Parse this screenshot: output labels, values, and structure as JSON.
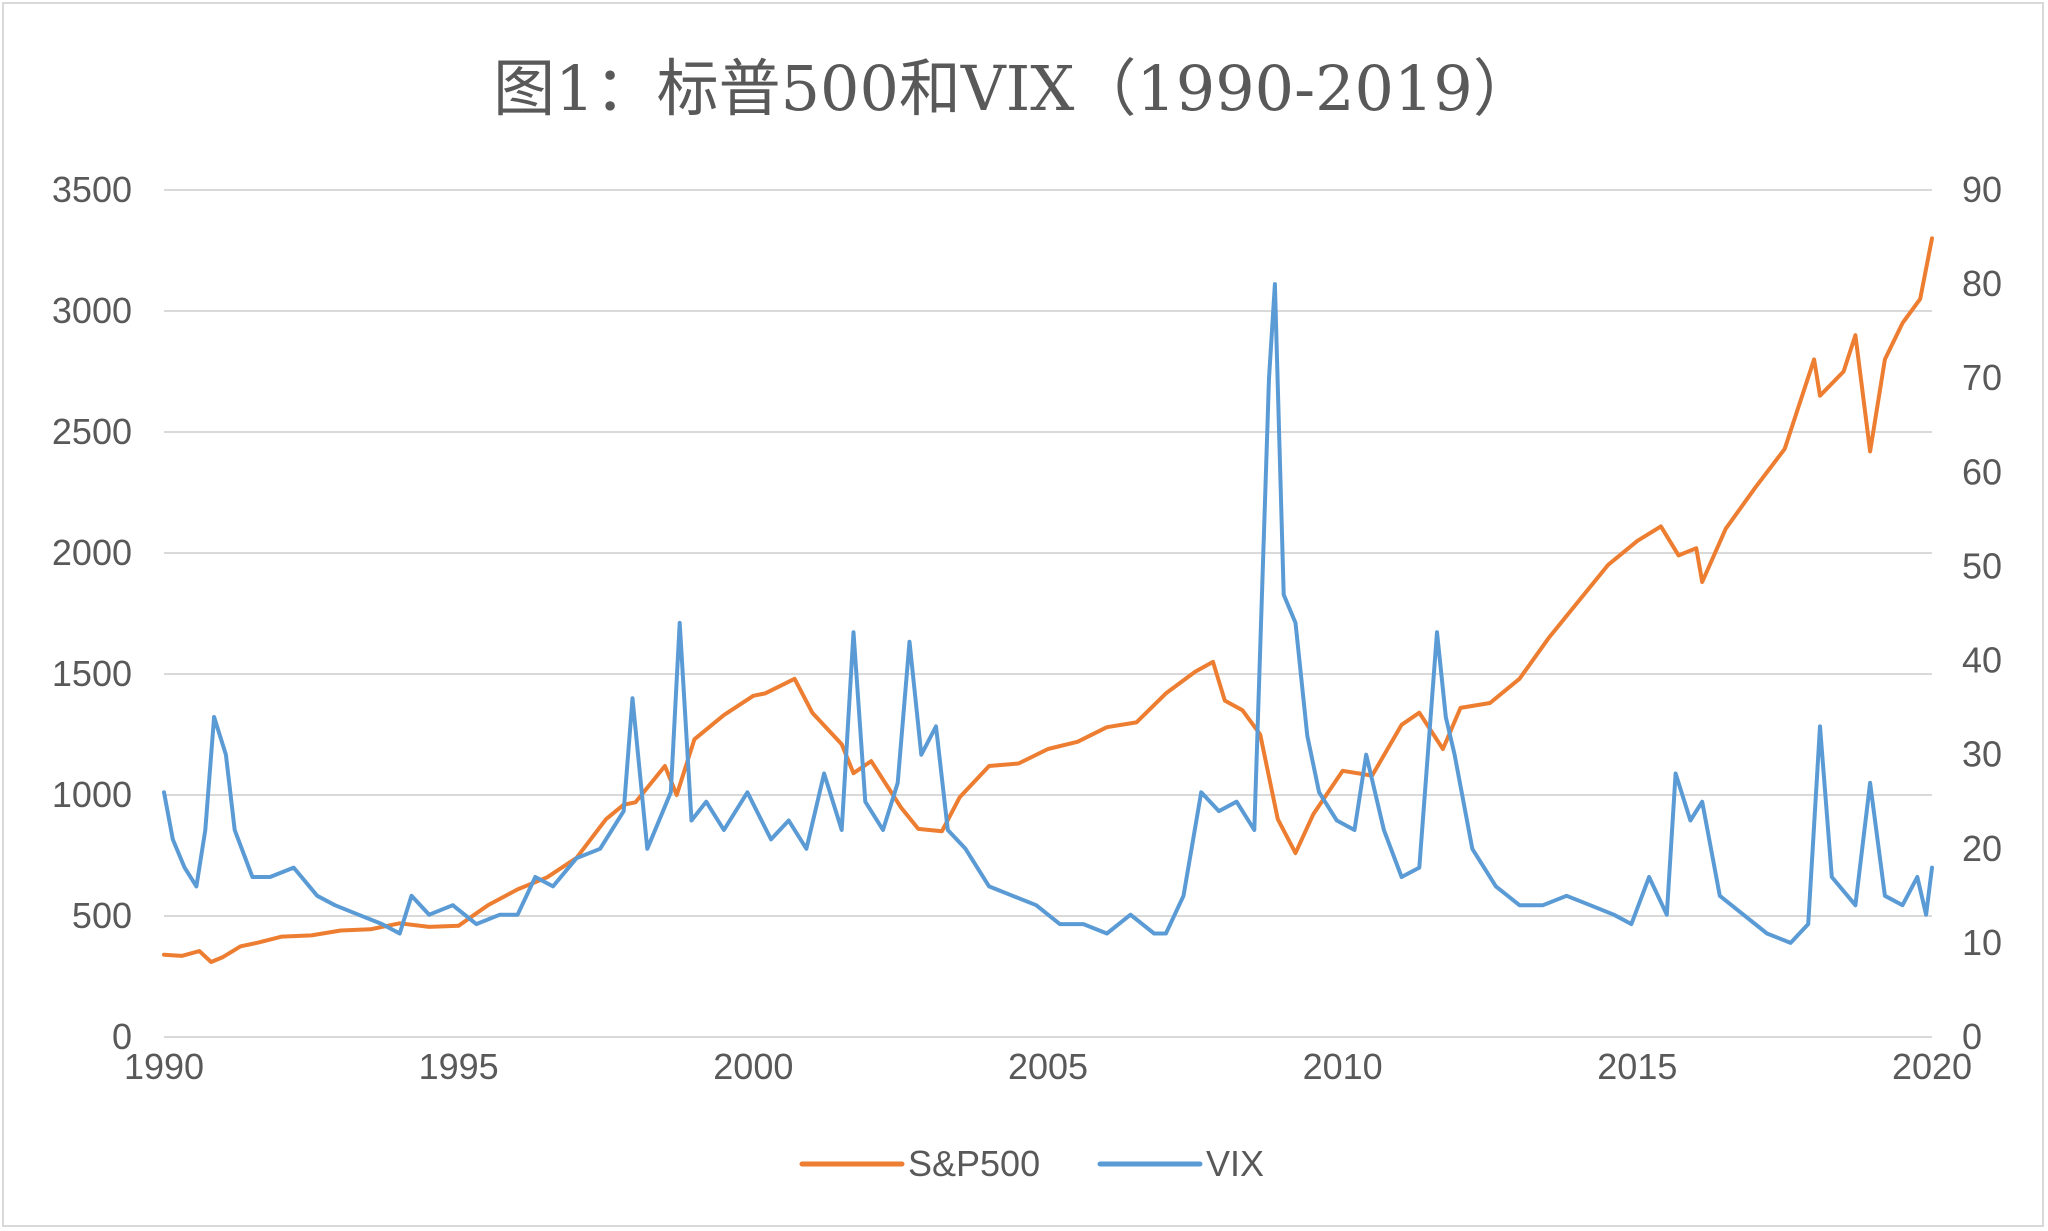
{
  "chart_data": {
    "type": "line",
    "title": "图1：标普500和VIX（1990-2019）",
    "xlabel": "",
    "ylabel": "",
    "x_ticks": [
      "1990",
      "1995",
      "2000",
      "2005",
      "2010",
      "2015",
      "2020"
    ],
    "xlim": [
      1990,
      2020
    ],
    "y_left_ticks": [
      "0",
      "500",
      "1000",
      "1500",
      "2000",
      "2500",
      "3000",
      "3500"
    ],
    "y_left_lim": [
      0,
      3500
    ],
    "y_right_ticks": [
      "0",
      "10",
      "20",
      "30",
      "40",
      "50",
      "60",
      "70",
      "80",
      "90"
    ],
    "y_right_lim": [
      0,
      90
    ],
    "grid": true,
    "legend_position": "bottom",
    "series": [
      {
        "name": "S&P500",
        "axis": "left",
        "color": "#ED7D31",
        "x": [
          1990.0,
          1990.3,
          1990.6,
          1990.8,
          1991.0,
          1991.3,
          1991.6,
          1992.0,
          1992.5,
          1993.0,
          1993.5,
          1994.0,
          1994.5,
          1995.0,
          1995.5,
          1996.0,
          1996.5,
          1997.0,
          1997.5,
          1997.8,
          1998.0,
          1998.5,
          1998.7,
          1999.0,
          1999.5,
          2000.0,
          2000.2,
          2000.7,
          2001.0,
          2001.5,
          2001.7,
          2002.0,
          2002.5,
          2002.8,
          2003.2,
          2003.5,
          2004.0,
          2004.5,
          2005.0,
          2005.5,
          2006.0,
          2006.5,
          2007.0,
          2007.5,
          2007.8,
          2008.0,
          2008.3,
          2008.6,
          2008.9,
          2009.2,
          2009.5,
          2010.0,
          2010.5,
          2011.0,
          2011.3,
          2011.7,
          2012.0,
          2012.5,
          2013.0,
          2013.5,
          2014.0,
          2014.5,
          2015.0,
          2015.4,
          2015.7,
          2016.0,
          2016.1,
          2016.5,
          2017.0,
          2017.5,
          2018.0,
          2018.1,
          2018.5,
          2018.7,
          2018.95,
          2019.2,
          2019.5,
          2019.8,
          2020.0
        ],
        "values": [
          340,
          335,
          355,
          310,
          330,
          375,
          390,
          415,
          420,
          440,
          445,
          470,
          455,
          460,
          545,
          610,
          660,
          740,
          900,
          960,
          970,
          1120,
          1000,
          1230,
          1330,
          1410,
          1420,
          1480,
          1340,
          1210,
          1090,
          1140,
          950,
          860,
          850,
          990,
          1120,
          1130,
          1190,
          1220,
          1280,
          1300,
          1420,
          1510,
          1550,
          1390,
          1350,
          1250,
          900,
          760,
          920,
          1100,
          1080,
          1290,
          1340,
          1190,
          1360,
          1380,
          1480,
          1650,
          1800,
          1950,
          2050,
          2110,
          1990,
          2020,
          1880,
          2100,
          2270,
          2430,
          2800,
          2650,
          2750,
          2900,
          2420,
          2800,
          2950,
          3050,
          3300
        ]
      },
      {
        "name": "VIX",
        "axis": "right",
        "color": "#5B9BD5",
        "x": [
          1990.0,
          1990.15,
          1990.35,
          1990.55,
          1990.7,
          1990.85,
          1991.05,
          1991.2,
          1991.5,
          1991.8,
          1992.2,
          1992.6,
          1992.9,
          1993.3,
          1993.7,
          1994.0,
          1994.2,
          1994.5,
          1994.9,
          1995.3,
          1995.7,
          1996.0,
          1996.3,
          1996.6,
          1997.0,
          1997.4,
          1997.8,
          1997.95,
          1998.2,
          1998.6,
          1998.75,
          1998.95,
          1999.2,
          1999.5,
          1999.9,
          2000.3,
          2000.6,
          2000.9,
          2001.2,
          2001.5,
          2001.7,
          2001.9,
          2002.2,
          2002.45,
          2002.65,
          2002.85,
          2003.1,
          2003.3,
          2003.6,
          2004.0,
          2004.4,
          2004.8,
          2005.2,
          2005.6,
          2006.0,
          2006.4,
          2006.8,
          2007.0,
          2007.3,
          2007.6,
          2007.9,
          2008.2,
          2008.5,
          2008.75,
          2008.85,
          2009.0,
          2009.2,
          2009.4,
          2009.6,
          2009.9,
          2010.2,
          2010.4,
          2010.7,
          2011.0,
          2011.3,
          2011.6,
          2011.75,
          2011.9,
          2012.2,
          2012.6,
          2013.0,
          2013.4,
          2013.8,
          2014.2,
          2014.6,
          2014.9,
          2015.2,
          2015.5,
          2015.65,
          2015.9,
          2016.1,
          2016.4,
          2016.8,
          2017.2,
          2017.6,
          2017.9,
          2018.1,
          2018.3,
          2018.7,
          2018.95,
          2019.2,
          2019.5,
          2019.75,
          2019.9,
          2020.0
        ],
        "values": [
          26,
          21,
          18,
          16,
          22,
          34,
          30,
          22,
          17,
          17,
          18,
          15,
          14,
          13,
          12,
          11,
          15,
          13,
          14,
          12,
          13,
          13,
          17,
          16,
          19,
          20,
          24,
          36,
          20,
          26,
          44,
          23,
          25,
          22,
          26,
          21,
          23,
          20,
          28,
          22,
          43,
          25,
          22,
          27,
          42,
          30,
          33,
          22,
          20,
          16,
          15,
          14,
          12,
          12,
          11,
          13,
          11,
          11,
          15,
          26,
          24,
          25,
          22,
          70,
          80,
          47,
          44,
          32,
          26,
          23,
          22,
          30,
          22,
          17,
          18,
          43,
          34,
          30,
          20,
          16,
          14,
          14,
          15,
          14,
          13,
          12,
          17,
          13,
          28,
          23,
          25,
          15,
          13,
          11,
          10,
          12,
          33,
          17,
          14,
          27,
          15,
          14,
          17,
          13,
          18
        ]
      }
    ]
  }
}
